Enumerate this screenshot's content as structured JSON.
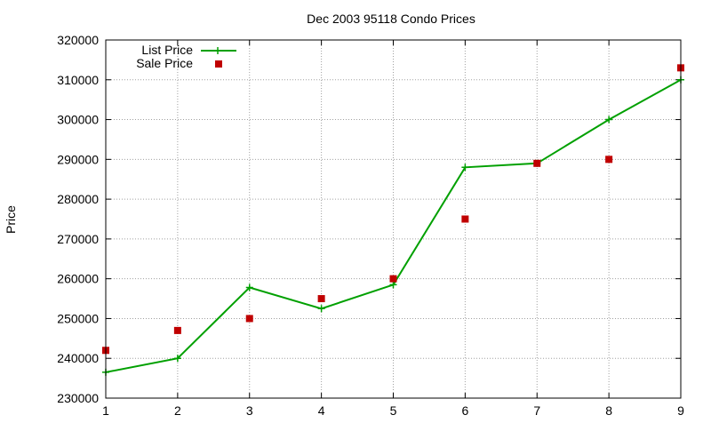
{
  "chart_data": {
    "type": "line",
    "title": "Dec 2003 95118 Condo Prices",
    "xlabel": "",
    "ylabel": "Price",
    "x": [
      1,
      2,
      3,
      4,
      5,
      6,
      7,
      8,
      9
    ],
    "xlim": [
      1,
      9
    ],
    "ylim": [
      230000,
      320000
    ],
    "xticks": [
      1,
      2,
      3,
      4,
      5,
      6,
      7,
      8,
      9
    ],
    "yticks": [
      230000,
      240000,
      250000,
      260000,
      270000,
      280000,
      290000,
      300000,
      310000,
      320000
    ],
    "grid": true,
    "legend_position": "top-left",
    "series": [
      {
        "name": "List Price",
        "style": "line+cross",
        "color": "#00a000",
        "values": [
          236500,
          240000,
          257800,
          252500,
          258500,
          288000,
          289000,
          300000,
          310000
        ]
      },
      {
        "name": "Sale Price",
        "style": "square",
        "color": "#c00000",
        "values": [
          242000,
          247000,
          250000,
          255000,
          260000,
          275000,
          289000,
          290000,
          313000
        ]
      }
    ]
  }
}
